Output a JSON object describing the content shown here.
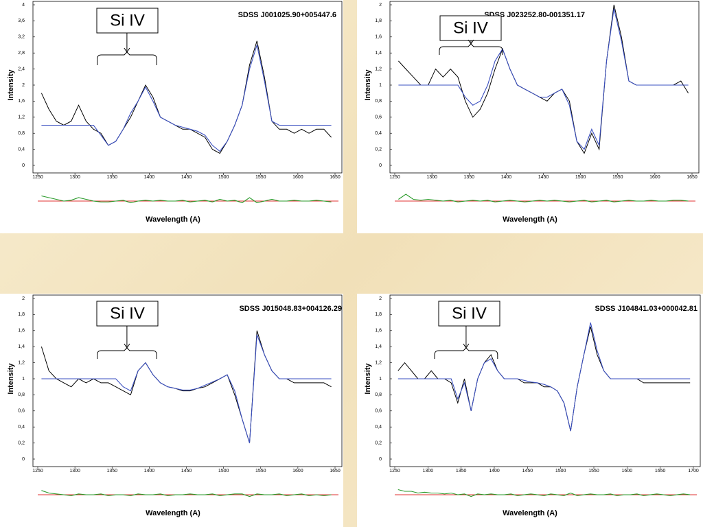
{
  "chart_data": [
    {
      "type": "line",
      "title": "SDSS J001025.90+005447.6",
      "annotation": "Si IV",
      "annotation_x": [
        1330,
        1410
      ],
      "xlabel": "Wavelength (A)",
      "ylabel": "Intensity",
      "xlim": [
        1250,
        1650
      ],
      "xticks": [
        1250,
        1300,
        1350,
        1400,
        1450,
        1500,
        1550,
        1600,
        1650
      ],
      "ylim": [
        0,
        4
      ],
      "yticks": [
        0,
        {
          "value": 0.4,
          "label": "0,4"
        },
        {
          "value": 0.8,
          "label": "0,8"
        },
        {
          "value": 1.2,
          "label": "1,2"
        },
        {
          "value": 1.6,
          "label": "1,6"
        },
        2,
        {
          "value": 2.4,
          "label": "2,4"
        },
        {
          "value": 2.8,
          "label": "2,8"
        },
        {
          "value": 3.2,
          "label": "3,2"
        },
        {
          "value": 3.6,
          "label": "3,6"
        },
        4
      ],
      "y2lim": [
        -1,
        1
      ],
      "x": [
        1255,
        1265,
        1275,
        1285,
        1295,
        1305,
        1315,
        1325,
        1335,
        1345,
        1355,
        1365,
        1375,
        1385,
        1395,
        1405,
        1415,
        1425,
        1435,
        1445,
        1455,
        1465,
        1475,
        1485,
        1495,
        1505,
        1515,
        1525,
        1535,
        1545,
        1555,
        1565,
        1575,
        1585,
        1595,
        1605,
        1615,
        1625,
        1635,
        1645
      ],
      "series": [
        {
          "color": "#000000",
          "values": [
            1.8,
            1.4,
            1.1,
            1.0,
            1.1,
            1.5,
            1.1,
            0.9,
            0.8,
            0.5,
            0.6,
            0.9,
            1.2,
            1.6,
            2.0,
            1.7,
            1.2,
            1.1,
            1.0,
            0.9,
            0.9,
            0.8,
            0.7,
            0.4,
            0.3,
            0.6,
            1.0,
            1.5,
            2.5,
            3.1,
            2.2,
            1.1,
            0.9,
            0.9,
            0.8,
            0.9,
            0.8,
            0.9,
            0.9,
            0.7
          ]
        },
        {
          "color": "#3a4fc0",
          "values": [
            1,
            1,
            1,
            1,
            1,
            1,
            1,
            1,
            0.75,
            0.5,
            0.6,
            0.9,
            1.3,
            1.6,
            1.95,
            1.6,
            1.2,
            1.1,
            1.0,
            0.95,
            0.9,
            0.85,
            0.75,
            0.5,
            0.35,
            0.6,
            1.0,
            1.5,
            2.4,
            3.0,
            2.1,
            1.1,
            1,
            1,
            1,
            1,
            1,
            1,
            1,
            1
          ]
        },
        {
          "color": "#2a9a2a",
          "axis": "y2",
          "values": [
            0.3,
            0.2,
            0.1,
            0,
            0.05,
            0.2,
            0.1,
            0,
            -0.05,
            -0.05,
            0,
            0.05,
            -0.1,
            0,
            0.05,
            0,
            0.05,
            0,
            0,
            0.05,
            -0.05,
            0,
            0.05,
            -0.05,
            0.1,
            0,
            0.05,
            -0.1,
            0.2,
            -0.1,
            0,
            0.1,
            0,
            0,
            0.05,
            0,
            0,
            0.05,
            0,
            -0.05
          ]
        }
      ]
    },
    {
      "type": "line",
      "title": "SDSS J023252.80-001351.17",
      "annotation": "Si IV",
      "annotation_x": [
        1310,
        1395
      ],
      "xlabel": "Wavelength (A)",
      "ylabel": "Intensity",
      "xlim": [
        1250,
        1650
      ],
      "xticks": [
        1250,
        1300,
        1350,
        1400,
        1450,
        1500,
        1550,
        1600,
        1650
      ],
      "ylim": [
        0,
        2
      ],
      "yticks": [
        0,
        {
          "value": 0.2,
          "label": "0,2"
        },
        {
          "value": 0.4,
          "label": "0,4"
        },
        {
          "value": 0.6,
          "label": "0,6"
        },
        {
          "value": 0.8,
          "label": "0,8"
        },
        1,
        {
          "value": 1.2,
          "label": "1,2"
        },
        {
          "value": 1.4,
          "label": "1,4"
        },
        {
          "value": 1.6,
          "label": "1,6"
        },
        {
          "value": 1.8,
          "label": "1,8"
        },
        2
      ],
      "y2lim": [
        -1,
        1
      ],
      "x": [
        1255,
        1265,
        1275,
        1285,
        1295,
        1305,
        1315,
        1325,
        1335,
        1345,
        1355,
        1365,
        1375,
        1385,
        1395,
        1405,
        1415,
        1425,
        1435,
        1445,
        1455,
        1465,
        1475,
        1485,
        1495,
        1505,
        1515,
        1525,
        1535,
        1545,
        1555,
        1565,
        1575,
        1585,
        1595,
        1605,
        1615,
        1625,
        1635,
        1645
      ],
      "series": [
        {
          "color": "#000000",
          "values": [
            1.3,
            1.2,
            1.1,
            1.0,
            1.0,
            1.2,
            1.1,
            1.2,
            1.1,
            0.8,
            0.6,
            0.7,
            0.9,
            1.2,
            1.45,
            1.2,
            1.0,
            0.95,
            0.9,
            0.85,
            0.8,
            0.9,
            0.95,
            0.8,
            0.3,
            0.15,
            0.4,
            0.2,
            1.3,
            2.0,
            1.6,
            1.05,
            1.0,
            1.0,
            1.0,
            1.0,
            1.0,
            1.0,
            1.05,
            0.9
          ]
        },
        {
          "color": "#3a4fc0",
          "values": [
            1,
            1,
            1,
            1,
            1,
            1,
            1,
            1,
            1.0,
            0.85,
            0.75,
            0.8,
            1.0,
            1.3,
            1.45,
            1.2,
            1.0,
            0.95,
            0.9,
            0.85,
            0.85,
            0.9,
            0.95,
            0.75,
            0.3,
            0.2,
            0.45,
            0.25,
            1.3,
            1.95,
            1.55,
            1.05,
            1,
            1,
            1,
            1,
            1,
            1,
            1,
            1
          ]
        },
        {
          "color": "#2a9a2a",
          "axis": "y2",
          "values": [
            0.1,
            0.4,
            0.1,
            0.05,
            0.1,
            0.05,
            0,
            0.05,
            -0.05,
            0,
            0.05,
            0,
            0.05,
            -0.05,
            0,
            0.05,
            0,
            -0.05,
            0,
            0.05,
            0,
            0.05,
            0,
            -0.05,
            0,
            0.05,
            -0.05,
            0,
            0.05,
            -0.05,
            0,
            0.05,
            0,
            0,
            0.05,
            0,
            0,
            0.05,
            0.05,
            0
          ]
        }
      ]
    },
    {
      "type": "line",
      "title": "SDSS J015048.83+004126.29",
      "annotation": "Si IV",
      "annotation_x": [
        1330,
        1410
      ],
      "xlabel": "Wavelength (A)",
      "ylabel": "Intensity",
      "xlim": [
        1250,
        1650
      ],
      "xticks": [
        1250,
        1300,
        1350,
        1400,
        1450,
        1500,
        1550,
        1600,
        1650
      ],
      "ylim": [
        0,
        2
      ],
      "yticks": [
        0,
        {
          "value": 0.2,
          "label": "0,2"
        },
        {
          "value": 0.4,
          "label": "0,4"
        },
        {
          "value": 0.6,
          "label": "0,6"
        },
        {
          "value": 0.8,
          "label": "0,8"
        },
        1,
        {
          "value": 1.2,
          "label": "1,2"
        },
        {
          "value": 1.4,
          "label": "1,4"
        },
        {
          "value": 1.6,
          "label": "1,6"
        },
        {
          "value": 1.8,
          "label": "1,8"
        },
        2
      ],
      "y2lim": [
        -1,
        1
      ],
      "x": [
        1255,
        1265,
        1275,
        1285,
        1295,
        1305,
        1315,
        1325,
        1335,
        1345,
        1355,
        1365,
        1375,
        1385,
        1395,
        1405,
        1415,
        1425,
        1435,
        1445,
        1455,
        1465,
        1475,
        1485,
        1495,
        1505,
        1515,
        1525,
        1535,
        1545,
        1555,
        1565,
        1575,
        1585,
        1595,
        1605,
        1615,
        1625,
        1635,
        1645
      ],
      "series": [
        {
          "color": "#000000",
          "values": [
            1.4,
            1.1,
            1.0,
            0.95,
            0.9,
            1.0,
            0.95,
            1.0,
            0.95,
            0.95,
            0.9,
            0.85,
            0.8,
            1.1,
            1.2,
            1.05,
            0.95,
            0.9,
            0.88,
            0.85,
            0.85,
            0.88,
            0.9,
            0.95,
            1.0,
            1.05,
            0.8,
            0.5,
            0.2,
            1.6,
            1.3,
            1.1,
            1.0,
            1.0,
            0.95,
            0.95,
            0.95,
            0.95,
            0.95,
            0.9
          ]
        },
        {
          "color": "#3a4fc0",
          "values": [
            1,
            1,
            1,
            1,
            1,
            1,
            1,
            1,
            1,
            1,
            1,
            0.9,
            0.85,
            1.1,
            1.2,
            1.05,
            0.95,
            0.9,
            0.88,
            0.86,
            0.86,
            0.88,
            0.92,
            0.96,
            1.0,
            1.05,
            0.85,
            0.5,
            0.2,
            1.55,
            1.3,
            1.1,
            1,
            1,
            1,
            1,
            1,
            1,
            1,
            1
          ]
        },
        {
          "color": "#2a9a2a",
          "axis": "y2",
          "values": [
            0.25,
            0.1,
            0.05,
            0,
            -0.05,
            0.05,
            0,
            0,
            0.05,
            -0.05,
            0,
            0,
            -0.05,
            0.05,
            0,
            0,
            0.05,
            -0.05,
            0,
            0,
            0.05,
            0,
            0,
            0.05,
            -0.05,
            0,
            0.05,
            0.05,
            -0.1,
            0.05,
            0,
            0,
            0.05,
            -0.05,
            0,
            0.05,
            -0.05,
            0,
            -0.05,
            0
          ]
        }
      ]
    },
    {
      "type": "line",
      "title": "SDSS J104841.03+000042.81",
      "annotation": "Si IV",
      "annotation_x": [
        1310,
        1405
      ],
      "xlabel": "Wavelength (A)",
      "ylabel": "Intensity",
      "xlim": [
        1250,
        1700
      ],
      "xticks": [
        1250,
        1300,
        1350,
        1400,
        1450,
        1500,
        1550,
        1600,
        1650,
        1700
      ],
      "ylim": [
        0,
        2
      ],
      "yticks": [
        0,
        {
          "value": 0.2,
          "label": "0,2"
        },
        {
          "value": 0.4,
          "label": "0,4"
        },
        {
          "value": 0.6,
          "label": "0,6"
        },
        {
          "value": 0.8,
          "label": "0,8"
        },
        1,
        {
          "value": 1.2,
          "label": "1,2"
        },
        {
          "value": 1.4,
          "label": "1,4"
        },
        {
          "value": 1.6,
          "label": "1,6"
        },
        {
          "value": 1.8,
          "label": "1,8"
        },
        2
      ],
      "y2lim": [
        -1,
        1
      ],
      "x": [
        1255,
        1265,
        1275,
        1285,
        1295,
        1305,
        1315,
        1325,
        1335,
        1345,
        1355,
        1365,
        1375,
        1385,
        1395,
        1405,
        1415,
        1425,
        1435,
        1445,
        1455,
        1465,
        1475,
        1485,
        1495,
        1505,
        1515,
        1525,
        1535,
        1545,
        1555,
        1565,
        1575,
        1585,
        1595,
        1605,
        1615,
        1625,
        1635,
        1645,
        1655,
        1665,
        1675,
        1685,
        1695
      ],
      "series": [
        {
          "color": "#000000",
          "values": [
            1.1,
            1.2,
            1.1,
            1.0,
            1.0,
            1.1,
            1.0,
            1.0,
            0.95,
            0.7,
            1.0,
            0.6,
            1.0,
            1.2,
            1.3,
            1.1,
            1.0,
            1.0,
            1.0,
            0.95,
            0.95,
            0.95,
            0.9,
            0.9,
            0.85,
            0.7,
            0.35,
            0.9,
            1.3,
            1.65,
            1.3,
            1.1,
            1.0,
            1.0,
            1.0,
            1.0,
            1.0,
            0.95,
            0.95,
            0.95,
            0.95,
            0.95,
            0.95,
            0.95,
            0.95
          ]
        },
        {
          "color": "#3a4fc0",
          "values": [
            1,
            1,
            1,
            1,
            1,
            1,
            1,
            1,
            1.0,
            0.75,
            0.95,
            0.6,
            1.0,
            1.2,
            1.25,
            1.1,
            1.0,
            1.0,
            1.0,
            0.98,
            0.96,
            0.95,
            0.93,
            0.9,
            0.85,
            0.7,
            0.35,
            0.9,
            1.3,
            1.7,
            1.35,
            1.1,
            1,
            1,
            1,
            1,
            1,
            1,
            1,
            1,
            1,
            1,
            1,
            1,
            1
          ]
        },
        {
          "color": "#2a9a2a",
          "axis": "y2",
          "values": [
            0.3,
            0.2,
            0.2,
            0.1,
            0.15,
            0.1,
            0.1,
            0.05,
            0.1,
            0,
            0.05,
            -0.1,
            0.05,
            0,
            0.05,
            0,
            0,
            0.05,
            -0.05,
            0,
            0.05,
            0,
            -0.05,
            0.05,
            0,
            -0.05,
            0.1,
            -0.05,
            0,
            0.05,
            0,
            0,
            0.05,
            -0.05,
            0,
            0,
            0.05,
            -0.05,
            0,
            0.05,
            0,
            -0.05,
            0,
            0.05,
            0
          ]
        }
      ]
    }
  ]
}
